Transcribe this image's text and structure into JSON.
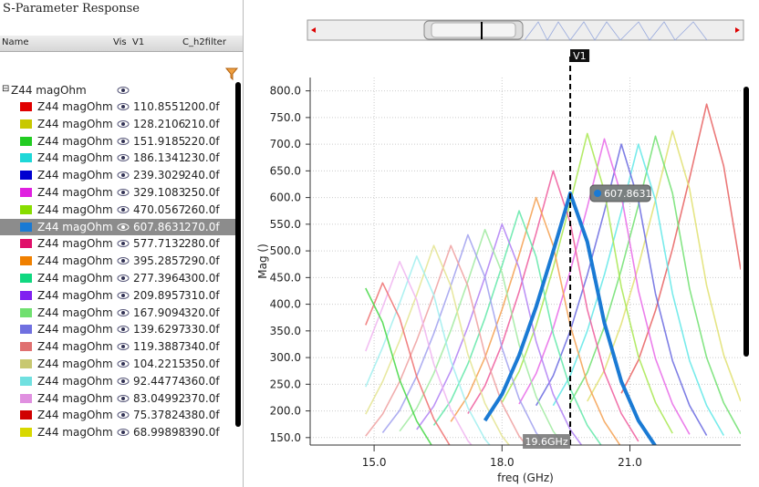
{
  "panel": {
    "title": "S-Parameter Response",
    "headers": [
      "Name",
      "Vis",
      "V1",
      "C_h2filter"
    ],
    "group": "Z44 magOhm",
    "rows": [
      {
        "color": "#e00000",
        "name": "Z44 magOhm",
        "v1": "110.8551",
        "c_h2filter": "200.0f"
      },
      {
        "color": "#c8c800",
        "name": "Z44 magOhm",
        "v1": "128.2106",
        "c_h2filter": "210.0f"
      },
      {
        "color": "#22cc22",
        "name": "Z44 magOhm",
        "v1": "151.9185",
        "c_h2filter": "220.0f"
      },
      {
        "color": "#1ed8d8",
        "name": "Z44 magOhm",
        "v1": "186.1341",
        "c_h2filter": "230.0f"
      },
      {
        "color": "#0000d0",
        "name": "Z44 magOhm",
        "v1": "239.3029",
        "c_h2filter": "240.0f"
      },
      {
        "color": "#e020e0",
        "name": "Z44 magOhm",
        "v1": "329.1083",
        "c_h2filter": "250.0f"
      },
      {
        "color": "#88dd00",
        "name": "Z44 magOhm",
        "v1": "470.0567",
        "c_h2filter": "260.0f"
      },
      {
        "color": "#1a7ad4",
        "name": "Z44 magOhm",
        "v1": "607.8631",
        "c_h2filter": "270.0f",
        "selected": true
      },
      {
        "color": "#e0106a",
        "name": "Z44 magOhm",
        "v1": "577.7132",
        "c_h2filter": "280.0f"
      },
      {
        "color": "#f08000",
        "name": "Z44 magOhm",
        "v1": "395.2857",
        "c_h2filter": "290.0f"
      },
      {
        "color": "#10d880",
        "name": "Z44 magOhm",
        "v1": "277.3964",
        "c_h2filter": "300.0f"
      },
      {
        "color": "#8020f0",
        "name": "Z44 magOhm",
        "v1": "209.8957",
        "c_h2filter": "310.0f"
      },
      {
        "color": "#70e070",
        "name": "Z44 magOhm",
        "v1": "167.9094",
        "c_h2filter": "320.0f"
      },
      {
        "color": "#7070e0",
        "name": "Z44 magOhm",
        "v1": "139.6297",
        "c_h2filter": "330.0f"
      },
      {
        "color": "#e07070",
        "name": "Z44 magOhm",
        "v1": "119.3887",
        "c_h2filter": "340.0f"
      },
      {
        "color": "#c8c870",
        "name": "Z44 magOhm",
        "v1": "104.2215",
        "c_h2filter": "350.0f"
      },
      {
        "color": "#70e0e0",
        "name": "Z44 magOhm",
        "v1": "92.44774",
        "c_h2filter": "360.0f"
      },
      {
        "color": "#e090e0",
        "name": "Z44 magOhm",
        "v1": "83.04992",
        "c_h2filter": "370.0f"
      },
      {
        "color": "#d00000",
        "name": "Z44 magOhm",
        "v1": "75.37824",
        "c_h2filter": "380.0f"
      },
      {
        "color": "#d8d800",
        "name": "Z44 magOhm",
        "v1": "68.99898",
        "c_h2filter": "390.0f"
      }
    ]
  },
  "chart_data": {
    "type": "line",
    "xlabel": "freq (GHz)",
    "ylabel": "Mag ()",
    "grid": true,
    "xlim": [
      13.5,
      23.6
    ],
    "ylim": [
      136,
      825
    ],
    "xticks": [
      {
        "value": 15,
        "label": "15.0"
      },
      {
        "value": 18,
        "label": "18.0"
      },
      {
        "value": 21,
        "label": "21.0"
      }
    ],
    "yticks": [
      {
        "value": 150,
        "label": "150.0"
      },
      {
        "value": 200,
        "label": "200.0"
      },
      {
        "value": 250,
        "label": "250.0"
      },
      {
        "value": 300,
        "label": "300.0"
      },
      {
        "value": 350,
        "label": "350.0"
      },
      {
        "value": 400,
        "label": "400.0"
      },
      {
        "value": 450,
        "label": "450.0"
      },
      {
        "value": 500,
        "label": "500.0"
      },
      {
        "value": 550,
        "label": "550.0"
      },
      {
        "value": 600,
        "label": "600.0"
      },
      {
        "value": 650,
        "label": "650.0"
      },
      {
        "value": 700,
        "label": "700.0"
      },
      {
        "value": 750,
        "label": "750.0"
      },
      {
        "value": 800,
        "label": "800.0"
      }
    ],
    "x": [
      14.8,
      15.2,
      15.6,
      16.0,
      16.4,
      16.8,
      17.2,
      17.6,
      18.0,
      18.4,
      18.8,
      19.2,
      19.6,
      20.0,
      20.4,
      20.8,
      21.2,
      21.6,
      22.0,
      22.4,
      22.8,
      23.2,
      23.6
    ],
    "series": [
      {
        "color": "#e86060",
        "values": [
          null,
          null,
          null,
          null,
          null,
          null,
          null,
          null,
          null,
          null,
          null,
          null,
          null,
          null,
          null,
          233,
          295,
          388,
          504,
          636,
          775,
          659,
          465
        ]
      },
      {
        "color": "#e0e070",
        "values": [
          null,
          null,
          null,
          null,
          null,
          null,
          null,
          null,
          null,
          null,
          null,
          null,
          null,
          218,
          276,
          363,
          471,
          595,
          725,
          616,
          435,
          305,
          218
        ]
      },
      {
        "color": "#70e070",
        "values": [
          null,
          null,
          null,
          null,
          null,
          null,
          null,
          null,
          null,
          null,
          null,
          null,
          215,
          272,
          358,
          465,
          586,
          715,
          608,
          429,
          300,
          215,
          157
        ]
      },
      {
        "color": "#60e8e8",
        "values": [
          null,
          null,
          null,
          null,
          null,
          null,
          null,
          null,
          null,
          null,
          null,
          210,
          266,
          350,
          455,
          574,
          700,
          595,
          420,
          294,
          210,
          154,
          null
        ]
      },
      {
        "color": "#6868e0",
        "values": [
          null,
          null,
          null,
          null,
          null,
          null,
          null,
          null,
          null,
          null,
          210,
          266,
          350,
          455,
          574,
          700,
          595,
          420,
          294,
          210,
          154,
          null,
          null
        ]
      },
      {
        "color": "#e868e8",
        "values": [
          null,
          null,
          null,
          null,
          null,
          null,
          null,
          null,
          null,
          213,
          270,
          355,
          462,
          582,
          710,
          604,
          426,
          298,
          213,
          156,
          null,
          null,
          null
        ]
      },
      {
        "color": "#a8e850",
        "values": [
          null,
          null,
          null,
          null,
          null,
          null,
          null,
          null,
          216,
          274,
          360,
          468,
          590,
          720,
          612,
          432,
          302,
          216,
          158,
          null,
          null,
          null,
          null
        ]
      },
      {
        "color": "#1a7ad4",
        "selected": true,
        "values": [
          null,
          null,
          null,
          null,
          null,
          null,
          null,
          182,
          231,
          304,
          395,
          499,
          608,
          517,
          365,
          255,
          182,
          134,
          null,
          null,
          null,
          null,
          null
        ]
      },
      {
        "color": "#ee5c9c",
        "values": [
          null,
          null,
          null,
          null,
          null,
          null,
          195,
          247,
          325,
          423,
          533,
          650,
          553,
          390,
          273,
          195,
          143,
          null,
          null,
          null,
          null,
          null,
          null
        ]
      },
      {
        "color": "#f4a050",
        "values": [
          null,
          null,
          null,
          null,
          null,
          180,
          228,
          300,
          390,
          492,
          600,
          510,
          360,
          252,
          180,
          132,
          null,
          null,
          null,
          null,
          null,
          null,
          null
        ]
      },
      {
        "color": "#60e8a8",
        "values": [
          null,
          null,
          null,
          null,
          173,
          219,
          288,
          374,
          472,
          575,
          489,
          345,
          242,
          173,
          127,
          null,
          null,
          null,
          null,
          null,
          null,
          null,
          null
        ]
      },
      {
        "color": "#b080f4",
        "values": [
          null,
          null,
          null,
          165,
          209,
          275,
          358,
          451,
          550,
          468,
          330,
          231,
          165,
          121,
          null,
          null,
          null,
          null,
          null,
          null,
          null,
          null,
          null
        ]
      },
      {
        "color": "#a0eaa0",
        "values": [
          null,
          null,
          162,
          205,
          270,
          351,
          443,
          540,
          459,
          324,
          227,
          162,
          119,
          null,
          null,
          null,
          null,
          null,
          null,
          null,
          null,
          null,
          null
        ]
      },
      {
        "color": "#a0a0ee",
        "values": [
          null,
          159,
          201,
          265,
          345,
          435,
          530,
          451,
          318,
          223,
          159,
          117,
          null,
          null,
          null,
          null,
          null,
          null,
          null,
          null,
          null,
          null,
          null
        ]
      },
      {
        "color": "#eea0a0",
        "values": [
          153,
          194,
          255,
          332,
          418,
          510,
          434,
          306,
          214,
          153,
          112,
          null,
          null,
          null,
          null,
          null,
          null,
          null,
          null,
          null,
          null,
          null,
          null
        ]
      },
      {
        "color": "#e4e490",
        "values": [
          194,
          255,
          332,
          418,
          510,
          434,
          306,
          214,
          153,
          112,
          null,
          null,
          null,
          null,
          null,
          null,
          null,
          null,
          null,
          null,
          null,
          null,
          null
        ]
      },
      {
        "color": "#a0eeee",
        "values": [
          245,
          319,
          402,
          490,
          417,
          294,
          206,
          147,
          108,
          null,
          null,
          null,
          null,
          null,
          null,
          null,
          null,
          null,
          null,
          null,
          null,
          null,
          null
        ]
      },
      {
        "color": "#f0b4f0",
        "values": [
          312,
          394,
          480,
          408,
          288,
          202,
          144,
          106,
          null,
          null,
          null,
          null,
          null,
          null,
          null,
          null,
          null,
          null,
          null,
          null,
          null,
          null,
          null
        ]
      },
      {
        "color": "#ee7070",
        "values": [
          361,
          440,
          374,
          264,
          185,
          132,
          97,
          null,
          null,
          null,
          null,
          null,
          null,
          null,
          null,
          null,
          null,
          null,
          null,
          null,
          null,
          null,
          null
        ]
      },
      {
        "color": "#44d844",
        "values": [
          430,
          366,
          258,
          181,
          129,
          95,
          null,
          null,
          null,
          null,
          null,
          null,
          null,
          null,
          null,
          null,
          null,
          null,
          null,
          null,
          null,
          null,
          null
        ]
      }
    ],
    "cursor": {
      "name": "V1",
      "x": 19.6,
      "x_label": "19.6GHz",
      "value": 607.8631
    }
  }
}
